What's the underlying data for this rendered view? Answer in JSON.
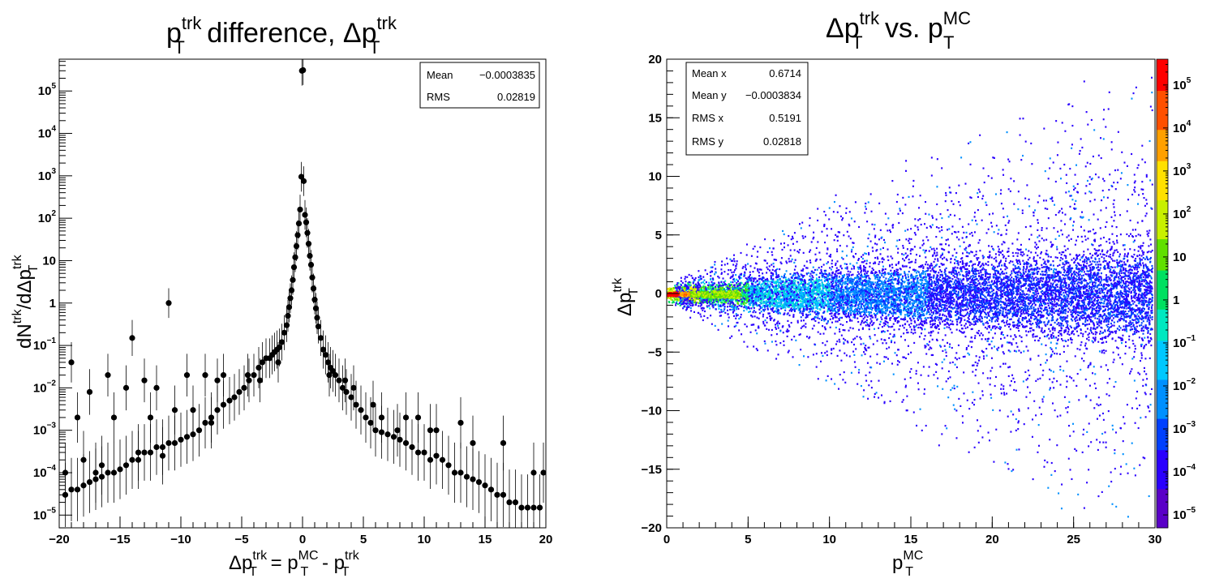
{
  "chart_data": [
    {
      "type": "scatter",
      "title_parts": {
        "p": "p",
        "sup": "trk",
        "sub": "T",
        "mid": " difference, Δp",
        "sup2": "trk",
        "sub2": "T"
      },
      "xlabel_parts": {
        "a": "Δp",
        "a_sup": "trk",
        "a_sub": "T",
        "eq": " = p",
        "b_sup": "MC",
        "b_sub": "T",
        "minus": " - p",
        "c_sup": "trk",
        "c_sub": "T"
      },
      "ylabel_parts": {
        "a": "dN",
        "a_sup": "trk",
        "b": "/dΔp",
        "b_sup": "trk",
        "b_sub": "T"
      },
      "xlim": [
        -20,
        20
      ],
      "ylim_log": [
        -5.3,
        5.75
      ],
      "y_scale": "log",
      "x_ticks": [
        "−20",
        "−15",
        "−10",
        "−5",
        "0",
        "5",
        "10",
        "15",
        "20"
      ],
      "x_tick_values": [
        -20,
        -15,
        -10,
        -5,
        0,
        5,
        10,
        15,
        20
      ],
      "y_ticks_exp": [
        {
          "base": "10",
          "exp": "5",
          "v": 5
        },
        {
          "base": "10",
          "exp": "4",
          "v": 4
        },
        {
          "base": "10",
          "exp": "3",
          "v": 3
        },
        {
          "base": "10",
          "exp": "2",
          "v": 2
        },
        {
          "base": "10",
          "exp": "",
          "v": 1
        },
        {
          "base": "1",
          "exp": "",
          "v": 0
        },
        {
          "base": "10",
          "exp": "−1",
          "v": -1
        },
        {
          "base": "10",
          "exp": "−2",
          "v": -2
        },
        {
          "base": "10",
          "exp": "−3",
          "v": -3
        },
        {
          "base": "10",
          "exp": "−4",
          "v": -4
        },
        {
          "base": "10",
          "exp": "−5",
          "v": -5
        }
      ],
      "stats": [
        {
          "label": "Mean",
          "value": "−0.0003835"
        },
        {
          "label": "RMS",
          "value": "0.02819"
        }
      ],
      "points": [
        [
          -0.05,
          300000
        ],
        [
          0.05,
          310000
        ],
        [
          -0.1,
          950
        ],
        [
          0.1,
          750
        ],
        [
          -0.2,
          160
        ],
        [
          0.2,
          120
        ],
        [
          -0.3,
          75
        ],
        [
          0.3,
          80
        ],
        [
          -0.4,
          40
        ],
        [
          0.4,
          45
        ],
        [
          -0.5,
          22
        ],
        [
          0.5,
          25
        ],
        [
          -0.6,
          12
        ],
        [
          0.6,
          13
        ],
        [
          -0.7,
          7
        ],
        [
          0.7,
          8
        ],
        [
          -0.8,
          3.5
        ],
        [
          0.8,
          4
        ],
        [
          -0.9,
          2
        ],
        [
          0.9,
          2.2
        ],
        [
          -1.0,
          1.3
        ],
        [
          1.0,
          1.2
        ],
        [
          -1.1,
          0.8
        ],
        [
          1.1,
          0.75
        ],
        [
          -1.2,
          0.5
        ],
        [
          1.2,
          0.45
        ],
        [
          -1.3,
          0.3
        ],
        [
          1.3,
          0.28
        ],
        [
          -1.5,
          0.2
        ],
        [
          1.5,
          0.15
        ],
        [
          -1.7,
          0.12
        ],
        [
          1.7,
          0.08
        ],
        [
          -1.9,
          0.09
        ],
        [
          1.9,
          0.06
        ],
        [
          -2.1,
          0.08
        ],
        [
          2.1,
          0.04
        ],
        [
          -2.3,
          0.07
        ],
        [
          2.3,
          0.03
        ],
        [
          -2.5,
          0.06
        ],
        [
          2.5,
          0.025
        ],
        [
          -2.7,
          0.05
        ],
        [
          2.7,
          0.02
        ],
        [
          -3.0,
          0.05
        ],
        [
          3.0,
          0.015
        ],
        [
          -3.3,
          0.04
        ],
        [
          3.3,
          0.01
        ],
        [
          -3.6,
          0.03
        ],
        [
          3.6,
          0.008
        ],
        [
          -4.0,
          0.02
        ],
        [
          4.0,
          0.006
        ],
        [
          -4.4,
          0.015
        ],
        [
          4.4,
          0.004
        ],
        [
          -4.8,
          0.01
        ],
        [
          4.8,
          0.003
        ],
        [
          -5.2,
          0.008
        ],
        [
          5.2,
          0.002
        ],
        [
          -5.6,
          0.006
        ],
        [
          5.6,
          0.0015
        ],
        [
          -6.0,
          0.005
        ],
        [
          6.0,
          0.001
        ],
        [
          -6.5,
          0.004
        ],
        [
          6.5,
          0.0009
        ],
        [
          -7.0,
          0.003
        ],
        [
          7.0,
          0.0008
        ],
        [
          -7.5,
          0.002
        ],
        [
          7.5,
          0.0007
        ],
        [
          -8.0,
          0.0015
        ],
        [
          8.0,
          0.0006
        ],
        [
          -8.5,
          0.001
        ],
        [
          8.5,
          0.0005
        ],
        [
          -9.0,
          0.0008
        ],
        [
          9.0,
          0.0004
        ],
        [
          -9.5,
          0.0007
        ],
        [
          9.5,
          0.0003
        ],
        [
          -10.0,
          0.0006
        ],
        [
          10.0,
          0.0003
        ],
        [
          -10.5,
          0.0005
        ],
        [
          10.5,
          0.0002
        ],
        [
          -11.0,
          0.0005
        ],
        [
          11.0,
          0.00025
        ],
        [
          -11.5,
          0.0004
        ],
        [
          11.5,
          0.0002
        ],
        [
          -12.0,
          0.0004
        ],
        [
          12.0,
          0.00015
        ],
        [
          -12.5,
          0.0003
        ],
        [
          12.5,
          0.0001
        ],
        [
          -13.0,
          0.0003
        ],
        [
          13.0,
          0.0001
        ],
        [
          -13.5,
          0.0002
        ],
        [
          13.5,
          8e-05
        ],
        [
          -14.0,
          0.0002
        ],
        [
          14.0,
          7e-05
        ],
        [
          -14.5,
          0.00015
        ],
        [
          14.5,
          6e-05
        ],
        [
          -15.0,
          0.00012
        ],
        [
          15.0,
          5e-05
        ],
        [
          -15.5,
          0.0001
        ],
        [
          15.5,
          4e-05
        ],
        [
          -16.0,
          0.0001
        ],
        [
          16.0,
          3e-05
        ],
        [
          -16.5,
          8e-05
        ],
        [
          16.5,
          3e-05
        ],
        [
          -17.0,
          7e-05
        ],
        [
          17.0,
          2e-05
        ],
        [
          -17.5,
          6e-05
        ],
        [
          17.5,
          2e-05
        ],
        [
          -18.0,
          5e-05
        ],
        [
          18.0,
          1.5e-05
        ],
        [
          -18.5,
          4e-05
        ],
        [
          18.5,
          1.5e-05
        ],
        [
          -19.0,
          4e-05
        ],
        [
          19.0,
          1.5e-05
        ],
        [
          -19.5,
          3e-05
        ],
        [
          19.5,
          1.5e-05
        ],
        [
          -11.0,
          1.0
        ],
        [
          -14.0,
          0.15
        ],
        [
          -19.0,
          0.04
        ],
        [
          -16.0,
          0.02
        ],
        [
          -13.0,
          0.015
        ],
        [
          -9.5,
          0.02
        ],
        [
          -8.0,
          0.02
        ],
        [
          -7.0,
          0.015
        ],
        [
          -6.5,
          0.02
        ],
        [
          -14.5,
          0.01
        ],
        [
          -17.5,
          0.008
        ],
        [
          -12.0,
          0.01
        ],
        [
          -18.5,
          0.002
        ],
        [
          -15.5,
          0.002
        ],
        [
          -12.5,
          0.002
        ],
        [
          -10.5,
          0.003
        ],
        [
          -9.0,
          0.003
        ],
        [
          -7.5,
          0.0015
        ],
        [
          -3.5,
          0.015
        ],
        [
          -4.5,
          0.02
        ],
        [
          -2.0,
          0.04
        ],
        [
          3.5,
          0.015
        ],
        [
          2.2,
          0.02
        ],
        [
          4.2,
          0.01
        ],
        [
          6.5,
          0.002
        ],
        [
          8.5,
          0.002
        ],
        [
          9.5,
          0.002
        ],
        [
          10.5,
          0.001
        ],
        [
          11.0,
          0.001
        ],
        [
          13.0,
          0.0015
        ],
        [
          14.0,
          0.0005
        ],
        [
          16.5,
          0.0005
        ],
        [
          19.0,
          0.0001
        ],
        [
          19.8,
          0.0001
        ],
        [
          7.8,
          0.001
        ],
        [
          5.8,
          0.004
        ],
        [
          -19.5,
          0.0001
        ],
        [
          -18.0,
          0.0002
        ],
        [
          -17.0,
          0.0001
        ],
        [
          -16.5,
          0.00015
        ],
        [
          -13.5,
          0.0003
        ],
        [
          -11.5,
          0.00025
        ]
      ]
    },
    {
      "type": "heatmap",
      "title_parts": {
        "a": "Δp",
        "a_sup": "trk",
        "a_sub": "T",
        "mid": " vs. p",
        "b_sup": "MC",
        "b_sub": "T"
      },
      "xlabel_parts": {
        "a": "p",
        "a_sup": "MC",
        "a_sub": "T"
      },
      "ylabel_parts": {
        "a": "Δp",
        "a_sup": "trk",
        "a_sub": "T"
      },
      "xlim": [
        0,
        30
      ],
      "ylim": [
        -20,
        20
      ],
      "x_ticks": [
        "0",
        "5",
        "10",
        "15",
        "20",
        "25",
        "30"
      ],
      "x_tick_values": [
        0,
        5,
        10,
        15,
        20,
        25,
        30
      ],
      "y_ticks": [
        "20",
        "15",
        "10",
        "5",
        "0",
        "−5",
        "−10",
        "−15",
        "−20"
      ],
      "y_tick_values": [
        20,
        15,
        10,
        5,
        0,
        -5,
        -10,
        -15,
        -20
      ],
      "z_scale": "log",
      "zlim_log": [
        -5.3,
        5.6
      ],
      "z_ticks_exp": [
        {
          "base": "10",
          "exp": "5",
          "v": 5
        },
        {
          "base": "10",
          "exp": "4",
          "v": 4
        },
        {
          "base": "10",
          "exp": "3",
          "v": 3
        },
        {
          "base": "10",
          "exp": "2",
          "v": 2
        },
        {
          "base": "10",
          "exp": "",
          "v": 1
        },
        {
          "base": "1",
          "exp": "",
          "v": 0
        },
        {
          "base": "10",
          "exp": "−1",
          "v": -1
        },
        {
          "base": "10",
          "exp": "−2",
          "v": -2
        },
        {
          "base": "10",
          "exp": "−3",
          "v": -3
        },
        {
          "base": "10",
          "exp": "−4",
          "v": -4
        },
        {
          "base": "10",
          "exp": "−5",
          "v": -5
        }
      ],
      "stats": [
        {
          "label": "Mean x",
          "value": "0.6714"
        },
        {
          "label": "Mean y",
          "value": "−0.0003834"
        },
        {
          "label": "RMS x",
          "value": "0.5191"
        },
        {
          "label": "RMS y",
          "value": "0.02818"
        }
      ],
      "palette": [
        "#5a00c8",
        "#2a00ff",
        "#0040ff",
        "#0090ff",
        "#00c8ff",
        "#00e8c0",
        "#00e060",
        "#60e000",
        "#c8f000",
        "#ffe000",
        "#ffa000",
        "#ff5000",
        "#ff0000"
      ],
      "colors": {
        "frame": "#000000",
        "marker": "#000000"
      }
    }
  ]
}
